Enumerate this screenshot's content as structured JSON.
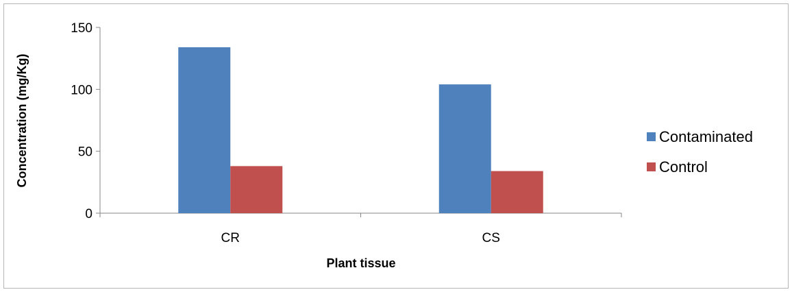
{
  "chart_data": {
    "type": "bar",
    "categories": [
      "CR",
      "CS"
    ],
    "series": [
      {
        "name": "Contaminated",
        "values": [
          134,
          104
        ],
        "color": "#4F81BD"
      },
      {
        "name": "Control",
        "values": [
          38,
          34
        ],
        "color": "#C0504D"
      }
    ],
    "xlabel": "Plant tissue",
    "ylabel": "Concentration (mg/Kg)",
    "ylim": [
      0,
      150
    ],
    "yticks": [
      "0",
      "50",
      "100",
      "150"
    ],
    "legend_position": "right",
    "grid": false
  }
}
